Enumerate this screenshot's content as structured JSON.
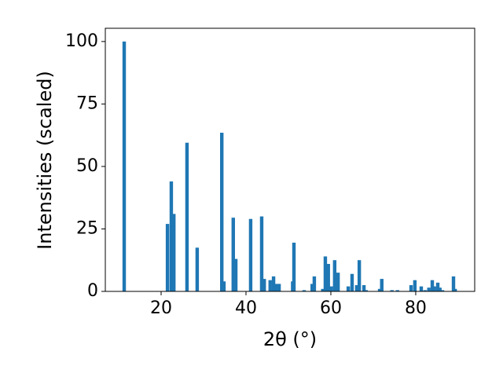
{
  "chart_data": {
    "type": "bar",
    "x_label": "2θ (°)",
    "y_label": "Intensities (scaled)",
    "color": "#1f77b4",
    "x": [
      11.3,
      21.5,
      22.4,
      23.0,
      26.1,
      28.5,
      34.3,
      34.8,
      37.0,
      37.6,
      41.1,
      43.7,
      44.3,
      45.7,
      46.5,
      47.2,
      47.8,
      51.0,
      51.3,
      53.7,
      55.6,
      56.1,
      58.1,
      58.7,
      59.4,
      60.1,
      60.9,
      61.7,
      64.1,
      65.0,
      66.1,
      66.7,
      67.8,
      68.3,
      71.5,
      72.0,
      74.4,
      75.7,
      78.9,
      79.8,
      81.3,
      82.2,
      83.1,
      83.9,
      84.4,
      85.2,
      85.7,
      86.3,
      88.9,
      89.3
    ],
    "values": [
      100,
      27,
      44,
      31,
      59.5,
      17.5,
      63.5,
      4,
      29.5,
      13,
      29,
      30,
      5,
      4.5,
      6,
      3,
      3,
      4,
      19.5,
      0.5,
      3,
      6,
      1,
      14,
      11,
      2,
      12.5,
      7.5,
      2,
      7,
      2.5,
      12.5,
      2.5,
      0.5,
      1,
      5,
      0.5,
      0.5,
      2.5,
      4.5,
      2,
      0.5,
      1.5,
      4.5,
      2,
      3.5,
      1.5,
      0.5,
      6,
      1
    ],
    "xlim": [
      6.85,
      93.9
    ],
    "ylim": [
      0,
      105.3
    ],
    "xticks": [
      20,
      40,
      60,
      80
    ],
    "yticks": [
      0,
      25,
      50,
      75,
      100
    ]
  }
}
